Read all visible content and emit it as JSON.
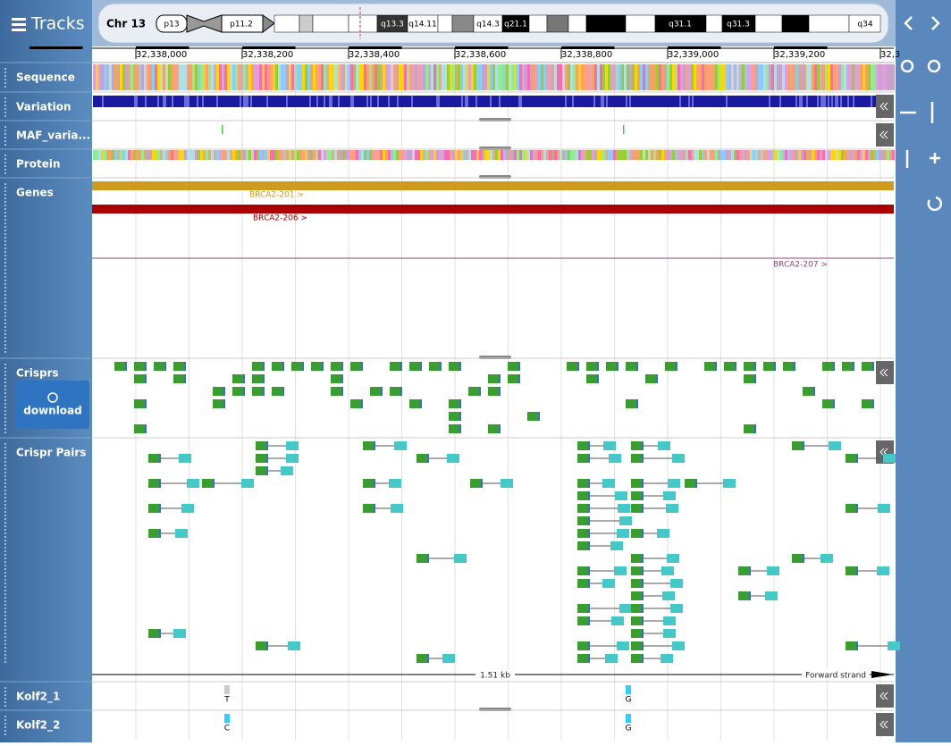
{
  "sidebar": {
    "title": "Tracks"
  },
  "ideogram": {
    "chromosome": "Chr 13",
    "bands": [
      "p13",
      "p11.2",
      "q13.3",
      "q14.11",
      "q14.3",
      "q21.1",
      "q31.1",
      "q31.3",
      "q34"
    ]
  },
  "ruler": {
    "labels": [
      "32,338,000",
      "32,338,200",
      "32,338,400",
      "32,338,600",
      "32,338,800",
      "32,339,000",
      "32,339,200",
      "32,3"
    ]
  },
  "tracks": [
    "Sequence",
    "Variation",
    "MAF_varia...",
    "Protein",
    "Genes",
    "Crisprs",
    "Crispr Pairs",
    "Kolf2_1",
    "Kolf2_2"
  ],
  "genes": [
    "BRCA2-201 >",
    "BRCA2-206 >",
    "BRCA2-207 >"
  ],
  "download": "download",
  "scale": {
    "length": "1.51 kb",
    "strand": "Forward strand"
  },
  "alleles": [
    [
      "T",
      "G"
    ],
    [
      "C",
      "G"
    ]
  ]
}
